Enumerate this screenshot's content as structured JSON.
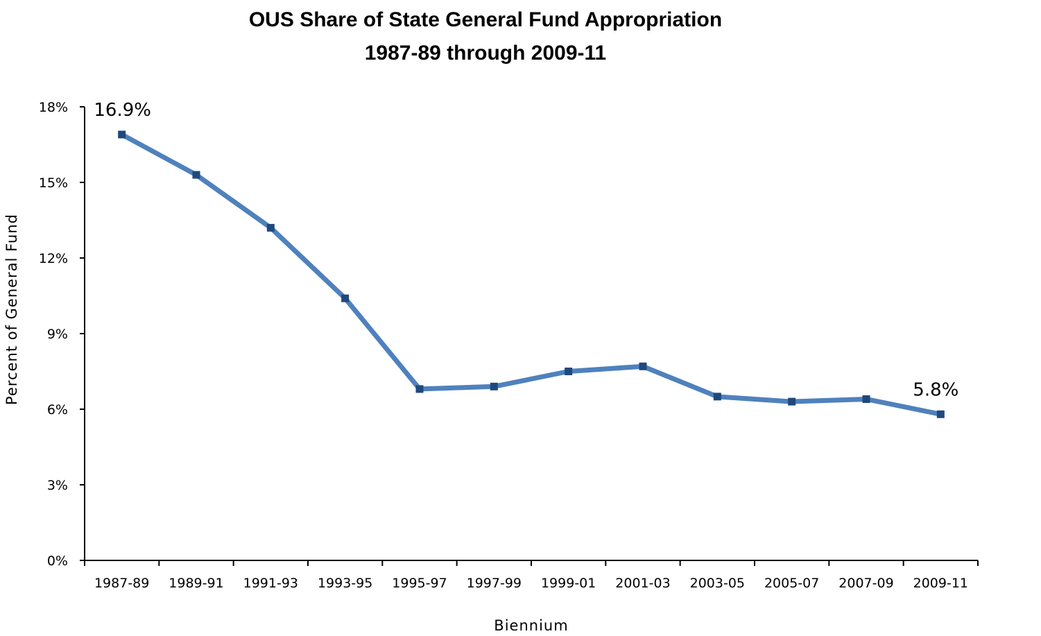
{
  "chart_data": {
    "type": "line",
    "title": "OUS Share of State General Fund Appropriation",
    "subtitle": "1987-89 through 2009-11",
    "xlabel": "Biennium",
    "ylabel": "Percent of General Fund",
    "categories": [
      "1987-89",
      "1989-91",
      "1991-93",
      "1993-95",
      "1995-97",
      "1997-99",
      "1999-01",
      "2001-03",
      "2003-05",
      "2005-07",
      "2007-09",
      "2009-11"
    ],
    "series": [
      {
        "values": [
          16.9,
          15.3,
          13.2,
          10.4,
          6.8,
          6.9,
          7.5,
          7.7,
          6.5,
          6.3,
          6.4,
          5.8
        ]
      }
    ],
    "ylim": [
      0,
      18
    ],
    "yticks": [
      0,
      3,
      6,
      9,
      12,
      15,
      18
    ],
    "ytick_labels": [
      "0%",
      "3%",
      "6%",
      "9%",
      "12%",
      "15%",
      "18%"
    ],
    "data_labels": [
      {
        "index": 0,
        "text": "16.9%"
      },
      {
        "index": 11,
        "text": "5.8%"
      }
    ],
    "grid": false,
    "legend": "none",
    "colors": {
      "line": "#4F81BD",
      "marker": "#1F497D",
      "axis": "#000000"
    }
  }
}
